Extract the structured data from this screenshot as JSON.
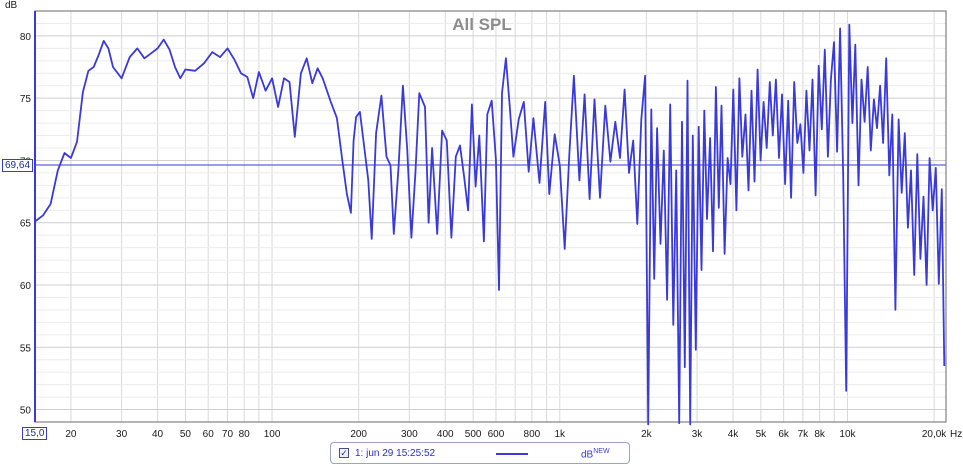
{
  "chart_data": {
    "type": "line",
    "title": "All SPL",
    "ylabel": "dB",
    "xunit": "Hz",
    "x_scale": "log",
    "xlim": [
      15,
      22000
    ],
    "ylim": [
      49,
      82
    ],
    "grid": true,
    "x_ticks": [
      {
        "v": 20,
        "l": "20"
      },
      {
        "v": 30,
        "l": "30"
      },
      {
        "v": 40,
        "l": "40"
      },
      {
        "v": 50,
        "l": "50"
      },
      {
        "v": 60,
        "l": "60"
      },
      {
        "v": 70,
        "l": "70"
      },
      {
        "v": 80,
        "l": "80"
      },
      {
        "v": 100,
        "l": "100"
      },
      {
        "v": 200,
        "l": "200"
      },
      {
        "v": 300,
        "l": "300"
      },
      {
        "v": 400,
        "l": "400"
      },
      {
        "v": 500,
        "l": "500"
      },
      {
        "v": 600,
        "l": "600"
      },
      {
        "v": 800,
        "l": "800"
      },
      {
        "v": 1000,
        "l": "1k"
      },
      {
        "v": 2000,
        "l": "2k"
      },
      {
        "v": 3000,
        "l": "3k"
      },
      {
        "v": 4000,
        "l": "4k"
      },
      {
        "v": 5000,
        "l": "5k"
      },
      {
        "v": 6000,
        "l": "6k"
      },
      {
        "v": 7000,
        "l": "7k"
      },
      {
        "v": 8000,
        "l": "8k"
      },
      {
        "v": 10000,
        "l": "10k"
      },
      {
        "v": 20000,
        "l": "20,0k"
      }
    ],
    "y_ticks": [
      50,
      55,
      60,
      65,
      70,
      75,
      80
    ],
    "cursor_y": "69,64",
    "cursor_x": "15,0",
    "series": [
      {
        "name": "1: jun 29 15:25:52",
        "color": "#3a3adb",
        "points": [
          [
            15,
            65.1
          ],
          [
            16,
            65.6
          ],
          [
            17,
            66.5
          ],
          [
            18,
            69.2
          ],
          [
            19,
            70.6
          ],
          [
            20,
            70.2
          ],
          [
            21,
            71.5
          ],
          [
            22,
            75.5
          ],
          [
            23,
            77.2
          ],
          [
            24,
            77.5
          ],
          [
            25,
            78.5
          ],
          [
            26,
            79.6
          ],
          [
            27,
            79.0
          ],
          [
            28,
            77.5
          ],
          [
            30,
            76.6
          ],
          [
            32,
            78.3
          ],
          [
            34,
            79.0
          ],
          [
            36,
            78.2
          ],
          [
            38,
            78.6
          ],
          [
            40,
            79.0
          ],
          [
            42,
            79.7
          ],
          [
            44,
            78.9
          ],
          [
            46,
            77.5
          ],
          [
            48,
            76.6
          ],
          [
            50,
            77.3
          ],
          [
            54,
            77.2
          ],
          [
            58,
            77.8
          ],
          [
            62,
            78.7
          ],
          [
            66,
            78.3
          ],
          [
            70,
            79.0
          ],
          [
            74,
            78.1
          ],
          [
            78,
            77.0
          ],
          [
            82,
            76.7
          ],
          [
            86,
            75.0
          ],
          [
            90,
            77.1
          ],
          [
            95,
            75.6
          ],
          [
            100,
            76.6
          ],
          [
            105,
            74.3
          ],
          [
            110,
            76.6
          ],
          [
            115,
            76.3
          ],
          [
            120,
            71.9
          ],
          [
            126,
            77.0
          ],
          [
            132,
            78.2
          ],
          [
            138,
            76.2
          ],
          [
            144,
            77.4
          ],
          [
            150,
            76.6
          ],
          [
            160,
            74.7
          ],
          [
            168,
            73.4
          ],
          [
            175,
            70.2
          ],
          [
            182,
            67.3
          ],
          [
            188,
            65.8
          ],
          [
            192,
            71.6
          ],
          [
            196,
            73.5
          ],
          [
            202,
            73.9
          ],
          [
            210,
            70.7
          ],
          [
            216,
            68.4
          ],
          [
            222,
            63.7
          ],
          [
            230,
            72.2
          ],
          [
            240,
            75.2
          ],
          [
            250,
            70.3
          ],
          [
            258,
            69.6
          ],
          [
            265,
            64.1
          ],
          [
            275,
            69.4
          ],
          [
            285,
            76.0
          ],
          [
            295,
            70.9
          ],
          [
            305,
            63.8
          ],
          [
            315,
            69.0
          ],
          [
            325,
            75.4
          ],
          [
            340,
            74.3
          ],
          [
            350,
            65.0
          ],
          [
            360,
            71.0
          ],
          [
            375,
            64.1
          ],
          [
            390,
            72.4
          ],
          [
            405,
            71.6
          ],
          [
            420,
            63.8
          ],
          [
            435,
            70.3
          ],
          [
            450,
            71.2
          ],
          [
            465,
            68.7
          ],
          [
            480,
            66.0
          ],
          [
            495,
            74.5
          ],
          [
            510,
            67.9
          ],
          [
            525,
            72.0
          ],
          [
            545,
            63.5
          ],
          [
            560,
            73.7
          ],
          [
            580,
            74.8
          ],
          [
            600,
            70.1
          ],
          [
            615,
            59.6
          ],
          [
            630,
            75.4
          ],
          [
            650,
            78.2
          ],
          [
            670,
            74.4
          ],
          [
            690,
            70.3
          ],
          [
            720,
            73.3
          ],
          [
            750,
            74.7
          ],
          [
            780,
            69.1
          ],
          [
            810,
            73.4
          ],
          [
            850,
            68.2
          ],
          [
            890,
            74.7
          ],
          [
            920,
            67.3
          ],
          [
            960,
            72.1
          ],
          [
            1000,
            69.6
          ],
          [
            1040,
            62.9
          ],
          [
            1080,
            70.6
          ],
          [
            1120,
            76.8
          ],
          [
            1170,
            68.4
          ],
          [
            1220,
            75.3
          ],
          [
            1270,
            66.9
          ],
          [
            1320,
            74.9
          ],
          [
            1380,
            67.0
          ],
          [
            1440,
            74.4
          ],
          [
            1500,
            69.9
          ],
          [
            1560,
            73.1
          ],
          [
            1620,
            70.2
          ],
          [
            1680,
            75.7
          ],
          [
            1740,
            69.0
          ],
          [
            1800,
            71.6
          ],
          [
            1860,
            64.9
          ],
          [
            1920,
            73.3
          ],
          [
            1980,
            76.8
          ],
          [
            2030,
            48.8
          ],
          [
            2080,
            74.1
          ],
          [
            2130,
            60.5
          ],
          [
            2180,
            72.6
          ],
          [
            2240,
            63.3
          ],
          [
            2300,
            70.8
          ],
          [
            2360,
            58.8
          ],
          [
            2420,
            74.5
          ],
          [
            2480,
            56.8
          ],
          [
            2540,
            69.2
          ],
          [
            2600,
            48.9
          ],
          [
            2660,
            73.1
          ],
          [
            2720,
            53.4
          ],
          [
            2780,
            76.4
          ],
          [
            2840,
            48.8
          ],
          [
            2900,
            72.0
          ],
          [
            2970,
            54.8
          ],
          [
            3040,
            72.7
          ],
          [
            3110,
            61.2
          ],
          [
            3180,
            74.0
          ],
          [
            3250,
            65.3
          ],
          [
            3330,
            71.8
          ],
          [
            3410,
            62.7
          ],
          [
            3490,
            75.9
          ],
          [
            3570,
            66.2
          ],
          [
            3650,
            74.4
          ],
          [
            3740,
            62.5
          ],
          [
            3830,
            70.2
          ],
          [
            3920,
            68.1
          ],
          [
            4010,
            75.7
          ],
          [
            4110,
            66.0
          ],
          [
            4210,
            76.6
          ],
          [
            4310,
            70.3
          ],
          [
            4420,
            73.7
          ],
          [
            4530,
            67.6
          ],
          [
            4640,
            75.6
          ],
          [
            4750,
            68.3
          ],
          [
            4870,
            77.3
          ],
          [
            4990,
            70.0
          ],
          [
            5110,
            74.7
          ],
          [
            5240,
            71.0
          ],
          [
            5370,
            76.3
          ],
          [
            5500,
            72.0
          ],
          [
            5640,
            76.5
          ],
          [
            5780,
            70.2
          ],
          [
            5920,
            75.3
          ],
          [
            6070,
            68.1
          ],
          [
            6220,
            74.8
          ],
          [
            6370,
            67.0
          ],
          [
            6530,
            76.3
          ],
          [
            6690,
            71.4
          ],
          [
            6860,
            72.9
          ],
          [
            7030,
            69.0
          ],
          [
            7200,
            75.6
          ],
          [
            7380,
            70.8
          ],
          [
            7560,
            76.5
          ],
          [
            7750,
            67.2
          ],
          [
            7940,
            77.6
          ],
          [
            8140,
            72.5
          ],
          [
            8340,
            78.9
          ],
          [
            8550,
            70.3
          ],
          [
            8760,
            76.5
          ],
          [
            8980,
            79.5
          ],
          [
            9200,
            70.7
          ],
          [
            9430,
            80.6
          ],
          [
            9660,
            68.8
          ],
          [
            9900,
            51.5
          ],
          [
            10150,
            80.9
          ],
          [
            10400,
            73.0
          ],
          [
            10650,
            79.3
          ],
          [
            10920,
            68.0
          ],
          [
            11190,
            76.5
          ],
          [
            11470,
            73.1
          ],
          [
            11760,
            77.5
          ],
          [
            12050,
            70.8
          ],
          [
            12350,
            74.9
          ],
          [
            12660,
            72.6
          ],
          [
            12980,
            76.0
          ],
          [
            13300,
            71.4
          ],
          [
            13630,
            78.2
          ],
          [
            13970,
            68.8
          ],
          [
            14320,
            73.7
          ],
          [
            14680,
            58.0
          ],
          [
            15050,
            73.3
          ],
          [
            15430,
            67.4
          ],
          [
            15820,
            72.2
          ],
          [
            16220,
            64.6
          ],
          [
            16630,
            69.2
          ],
          [
            17050,
            60.8
          ],
          [
            17480,
            70.5
          ],
          [
            17920,
            62.1
          ],
          [
            18370,
            67.1
          ],
          [
            18830,
            60.0
          ],
          [
            19300,
            70.2
          ],
          [
            19780,
            66.0
          ],
          [
            20270,
            69.4
          ],
          [
            20770,
            60.1
          ],
          [
            21280,
            67.7
          ],
          [
            21700,
            53.5
          ]
        ]
      }
    ]
  },
  "legend": {
    "series_label": "1: jun 29 15:25:52",
    "unit": "dB",
    "unit_sup": "NEW",
    "checked": "✓"
  }
}
